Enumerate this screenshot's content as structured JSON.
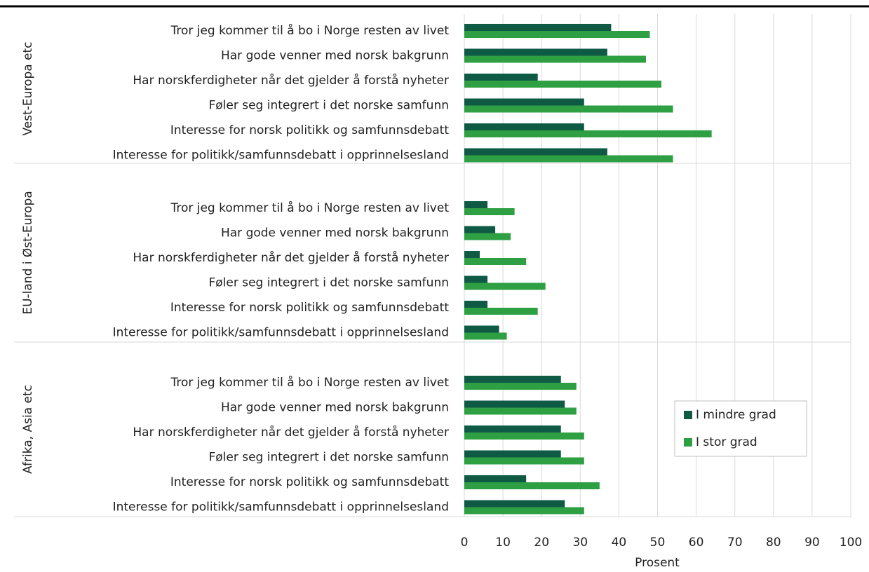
{
  "chart_data": {
    "type": "bar",
    "orientation": "horizontal",
    "groups": [
      {
        "name": "Vest-Europa etc",
        "categories": [
          "Tror jeg kommer til å bo i Norge resten av livet",
          "Har gode venner med norsk bakgrunn",
          "Har norskferdigheter når det gjelder å forstå nyheter",
          "Føler seg integrert i det norske samfunn",
          "Interesse for norsk politikk og samfunnsdebatt",
          "Interesse for politikk/samfunnsdebatt i opprinnelsesland"
        ]
      },
      {
        "name": "EU-land i Øst-Europa",
        "categories": [
          "Tror jeg kommer til å bo i Norge resten av livet",
          "Har gode venner med norsk bakgrunn",
          "Har norskferdigheter når det gjelder å forstå nyheter",
          "Føler seg integrert i det norske samfunn",
          "Interesse for norsk politikk og samfunnsdebatt",
          "Interesse for politikk/samfunnsdebatt i opprinnelsesland"
        ]
      },
      {
        "name": "Afrika, Asia etc",
        "categories": [
          "Tror jeg kommer til å bo i Norge resten av livet",
          "Har gode venner med norsk bakgrunn",
          "Har norskferdigheter når det gjelder å forstå nyheter",
          "Føler seg integrert i det norske samfunn",
          "Interesse for norsk politikk og samfunnsdebatt",
          "Interesse for politikk/samfunnsdebatt i opprinnelsesland"
        ]
      }
    ],
    "series": [
      {
        "name": "I mindre grad",
        "color": "#0e5a45",
        "values": [
          38,
          37,
          19,
          31,
          31,
          37,
          6,
          8,
          4,
          6,
          6,
          9,
          25,
          26,
          25,
          25,
          16,
          26
        ]
      },
      {
        "name": "I stor grad",
        "color": "#2e9f43",
        "values": [
          48,
          47,
          51,
          54,
          64,
          54,
          13,
          12,
          16,
          21,
          19,
          11,
          29,
          29,
          31,
          31,
          35,
          31
        ]
      }
    ],
    "xlabel": "Prosent",
    "xlim": [
      0,
      100
    ],
    "xticks": [
      0,
      10,
      20,
      30,
      40,
      50,
      60,
      70,
      80,
      90,
      100
    ],
    "grid": true,
    "legend": "lower right"
  }
}
